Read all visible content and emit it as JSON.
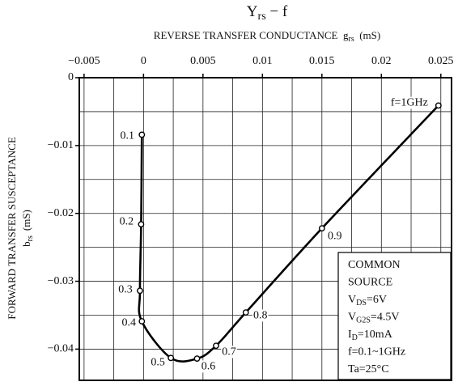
{
  "chart_data": {
    "type": "line",
    "title": {
      "main": "Y",
      "sub": "rs",
      "rest": " − f"
    },
    "x_label": {
      "main": "REVERSE TRANSFER CONDUCTANCE  g",
      "sub": "rs",
      "rest": "  (mS)"
    },
    "y_label": {
      "line1": "FORWARD TRANSFER SUSCEPTANCE",
      "main": "b",
      "sub": "rs",
      "rest": "(mS)"
    },
    "xlim": [
      -0.0054,
      0.0259
    ],
    "ylim": [
      -0.0446,
      0
    ],
    "xticks": [
      {
        "value": -0.005,
        "label": "−0.005"
      },
      0,
      0.005,
      0.01,
      0.015,
      0.02,
      0.025
    ],
    "yticks": [
      0,
      {
        "value": -0.01,
        "label": "−0.01"
      },
      {
        "value": -0.02,
        "label": "−0.02"
      },
      {
        "value": -0.03,
        "label": "−0.03"
      },
      {
        "value": -0.04,
        "label": "−0.04"
      }
    ],
    "xgrid": [
      -0.005,
      -0.0025,
      0,
      0.0025,
      0.005,
      0.0075,
      0.01,
      0.0125,
      0.015,
      0.0175,
      0.02,
      0.0225,
      0.025
    ],
    "ygrid": [
      0,
      -0.005,
      -0.01,
      -0.015,
      -0.02,
      -0.025,
      -0.03,
      -0.035,
      -0.04
    ],
    "grid": true,
    "series": [
      {
        "color": "#000000",
        "x": [
          -0.00014,
          -0.0002,
          -0.0003,
          -0.00014,
          0.0023,
          0.0045,
          0.0061,
          0.0086,
          0.015,
          0.0248
        ],
        "values": [
          -0.0084,
          -0.0216,
          -0.0314,
          -0.0359,
          -0.0413,
          -0.0414,
          -0.0395,
          -0.0346,
          -0.0222,
          -0.0041
        ],
        "point_labels": [
          "0.1",
          "0.2",
          "0.3",
          "0.4",
          "0.5",
          "0.6",
          "0.7",
          "0.8",
          "0.9",
          "f=1GHz"
        ]
      }
    ],
    "annotation": [
      {
        "main": "COMMON"
      },
      {
        "main": "SOURCE"
      },
      {
        "main": "V",
        "sub": "DS",
        "rest": "=6V"
      },
      {
        "main": "V",
        "sub": "G2S",
        "rest": "=4.5V"
      },
      {
        "main": "I",
        "sub": "D",
        "rest": "=10mA"
      },
      {
        "main": "f=0.1~1GHz"
      },
      {
        "main": "Ta=25°C"
      }
    ]
  }
}
